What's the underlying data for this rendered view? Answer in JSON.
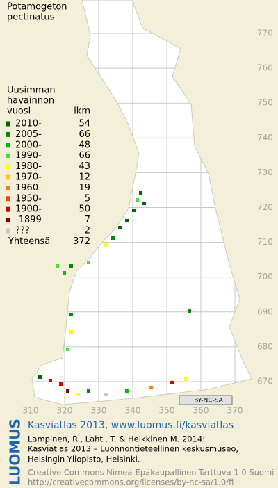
{
  "title": [
    "Potamogeton",
    "pectinatus"
  ],
  "legend": {
    "heading": [
      "Uusimman",
      "havainnon",
      "vuosi"
    ],
    "count_heading": "lkm",
    "entries": [
      {
        "label": "2010-",
        "count": 54,
        "color": "#006400"
      },
      {
        "label": "2005-",
        "count": 66,
        "color": "#008c00"
      },
      {
        "label": "2000-",
        "count": 48,
        "color": "#00c000"
      },
      {
        "label": "1990-",
        "count": 66,
        "color": "#40e040"
      },
      {
        "label": "1980-",
        "count": 43,
        "color": "#ffff00"
      },
      {
        "label": "1970-",
        "count": 12,
        "color": "#ffd000"
      },
      {
        "label": "1960-",
        "count": 19,
        "color": "#ff8000"
      },
      {
        "label": "1950-",
        "count": 5,
        "color": "#ff4000"
      },
      {
        "label": "1900-",
        "count": 50,
        "color": "#d00000"
      },
      {
        "label": "-1899",
        "count": 7,
        "color": "#800000"
      },
      {
        "label": "???",
        "count": 2,
        "color": "#c8c8c8"
      }
    ],
    "total": {
      "label": "Yhteensä",
      "count": 372
    }
  },
  "grid": {
    "northing": [
      770,
      760,
      750,
      740,
      730,
      720,
      710,
      700,
      690,
      680,
      670
    ],
    "easting": [
      310,
      320,
      330,
      340,
      350,
      360,
      370
    ]
  },
  "badge": "BY-NC-SA",
  "footer": {
    "side_logo": "LUOMUS",
    "link": "Kasviatlas 2013, www.luomus.fi/kasviatlas",
    "citation": [
      "Lampinen, R., Lahti, T. & Heikkinen M. 2014:",
      "Kasviatlas 2013 – Luonnontieteellinen keskusmuseo,",
      "Helsingin Yliopisto, Helsinki."
    ],
    "license": [
      "Creative Commons Nimeä-Epäkaupallinen-Tarttuva 1.0 Suomi",
      "http://creativecommons.org/licenses/by-nc-sa/1.0/fi"
    ]
  }
}
